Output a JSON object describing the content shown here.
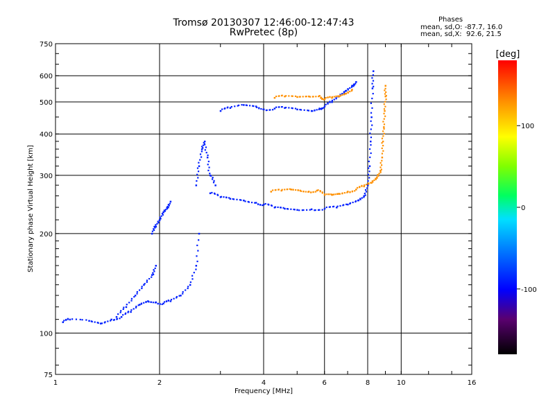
{
  "chart_data": {
    "type": "scatter",
    "title": "Tromsø 20130307 12:46:00-12:47:43",
    "subtitle": "RwPretec (8p)",
    "xlabel": "Frequency [MHz]",
    "ylabel": "Stationary phase Virtual Height [km]",
    "x_scale": "log",
    "y_scale": "log",
    "xlim": [
      1,
      16
    ],
    "ylim": [
      75,
      750
    ],
    "x_ticks": [
      1,
      2,
      4,
      6,
      8,
      10,
      16
    ],
    "y_ticks": [
      75,
      100,
      200,
      300,
      400,
      500,
      600,
      750
    ],
    "grid": true,
    "stats": {
      "heading": "Phases",
      "o_line": "mean, sd,O: -87.7, 16.0",
      "x_line": "mean, sd,X:  92.6, 21.5"
    },
    "colorbar": {
      "label": "[deg]",
      "ticks": [
        "100",
        "0",
        "-100"
      ],
      "tick_values": [
        100,
        0,
        -100
      ],
      "range": [
        -180,
        180
      ]
    },
    "series": [
      {
        "mode": "O",
        "phase_deg": -95,
        "traces": [
          {
            "x": [
              1.05,
              1.1,
              1.25,
              1.35,
              1.45,
              1.55,
              1.65,
              1.75,
              1.85,
              1.95,
              2.05,
              2.15,
              2.3,
              2.45,
              2.55,
              2.6
            ],
            "y": [
              108,
              110,
              109,
              107,
              110,
              112,
              116,
              122,
              125,
              124,
              123,
              125,
              130,
              140,
              160,
              200
            ]
          },
          {
            "x": [
              1.5,
              1.6,
              1.7,
              1.8,
              1.9,
              1.95
            ],
            "y": [
              112,
              120,
              130,
              140,
              150,
              160
            ]
          },
          {
            "x": [
              1.9,
              1.95,
              2.0,
              2.05,
              2.1,
              2.15
            ],
            "y": [
              200,
              210,
              220,
              232,
              240,
              250
            ]
          },
          {
            "x": [
              2.55,
              2.6,
              2.65,
              2.7,
              2.75,
              2.8,
              2.9
            ],
            "y": [
              280,
              320,
              360,
              380,
              340,
              300,
              280
            ]
          },
          {
            "x": [
              2.8,
              3.0,
              3.2,
              3.5,
              3.8,
              4.0,
              4.3,
              4.6,
              5.0,
              5.5,
              6.0,
              6.5,
              7.0,
              7.5,
              7.8,
              8.0,
              8.1,
              8.15,
              8.2,
              8.25,
              8.3
            ],
            "y": [
              265,
              258,
              255,
              252,
              248,
              245,
              240,
              238,
              236,
              237,
              238,
              240,
              245,
              252,
              260,
              280,
              320,
              380,
              450,
              550,
              620
            ]
          },
          {
            "x": [
              3.0,
              3.2,
              3.5,
              3.8,
              4.0,
              4.3,
              4.6,
              5.0,
              5.5,
              5.8,
              6.0,
              6.3,
              6.6,
              6.9,
              7.2,
              7.4
            ],
            "y": [
              470,
              480,
              490,
              485,
              475,
              478,
              480,
              475,
              470,
              478,
              485,
              500,
              520,
              540,
              560,
              575
            ]
          }
        ]
      },
      {
        "mode": "X",
        "phase_deg": 95,
        "traces": [
          {
            "x": [
              4.2,
              4.5,
              4.8,
              5.1,
              5.4,
              5.7,
              6.0,
              6.3,
              6.6,
              7.0,
              7.4,
              7.8,
              8.2,
              8.5,
              8.7,
              8.8,
              8.85,
              8.9,
              8.95,
              9.0,
              9.0
            ],
            "y": [
              268,
              270,
              272,
              270,
              268,
              270,
              262,
              262,
              264,
              268,
              272,
              278,
              285,
              295,
              310,
              340,
              380,
              420,
              470,
              520,
              560
            ]
          },
          {
            "x": [
              4.3,
              4.6,
              5.0,
              5.4,
              5.8,
              6.0,
              6.3,
              6.6,
              6.9,
              7.2
            ],
            "y": [
              515,
              520,
              518,
              520,
              522,
              510,
              515,
              520,
              530,
              545
            ]
          }
        ]
      }
    ]
  }
}
